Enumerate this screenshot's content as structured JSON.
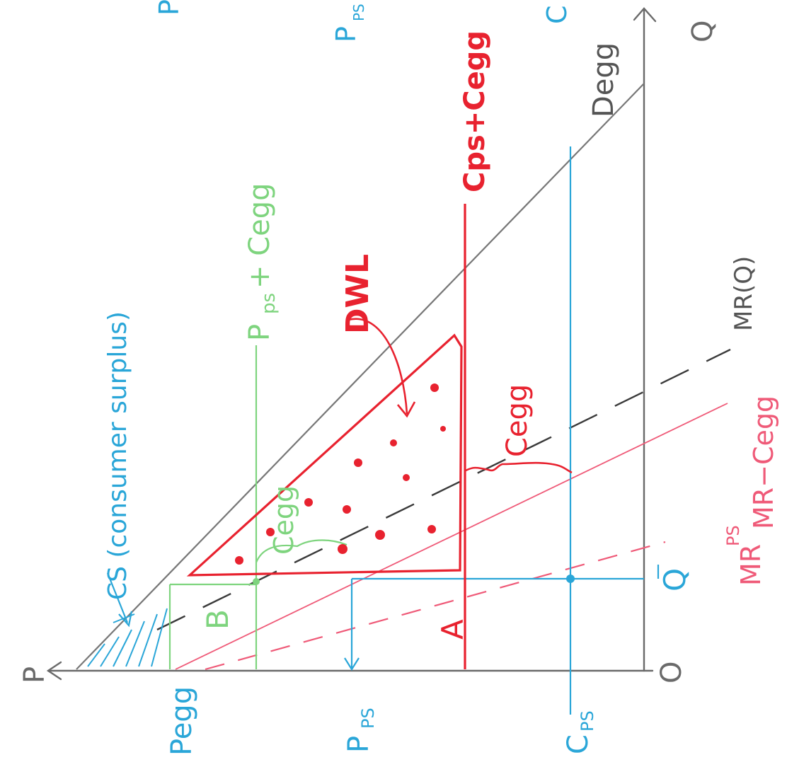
{
  "colors": {
    "paper": "#ffffff",
    "axis": "#6a6a6a",
    "demand": "#777777",
    "mr": "#3a3a3a",
    "blue": "#2aa6d8",
    "green": "#7ed47e",
    "red": "#e8222f",
    "pink": "#ef5a78"
  },
  "axes": {
    "price_label": "P",
    "quantity_label": "Q",
    "origin_label": "O"
  },
  "curves": {
    "demand": "Degg",
    "mr": "MR(Q)",
    "mr_minus_c": "MR−Cegg",
    "mr_ps_base": "MR",
    "mr_ps_sup": "PS"
  },
  "lines": {
    "cps_cegg": "Cps+Cegg",
    "pps_cegg_main": "P",
    "pps_cegg_sub": "ps",
    "pps_cegg_tail": "+ Cegg"
  },
  "annotations": {
    "cs_label": "CS (consumer surplus)",
    "dwl": "DWL",
    "cegg_red": "Cegg",
    "cegg_green": "Cegg",
    "point_a": "A",
    "point_b": "B"
  },
  "axis_labels": {
    "p_egg": "Pegg",
    "p_ps_main": "P",
    "p_ps_sub": "PS",
    "c_ps_main": "C",
    "c_ps_sub": "PS",
    "q_bar": "Q"
  },
  "top_fragments": {
    "left": "P",
    "middle": "P",
    "middle_sub": "PS",
    "right": "C"
  }
}
